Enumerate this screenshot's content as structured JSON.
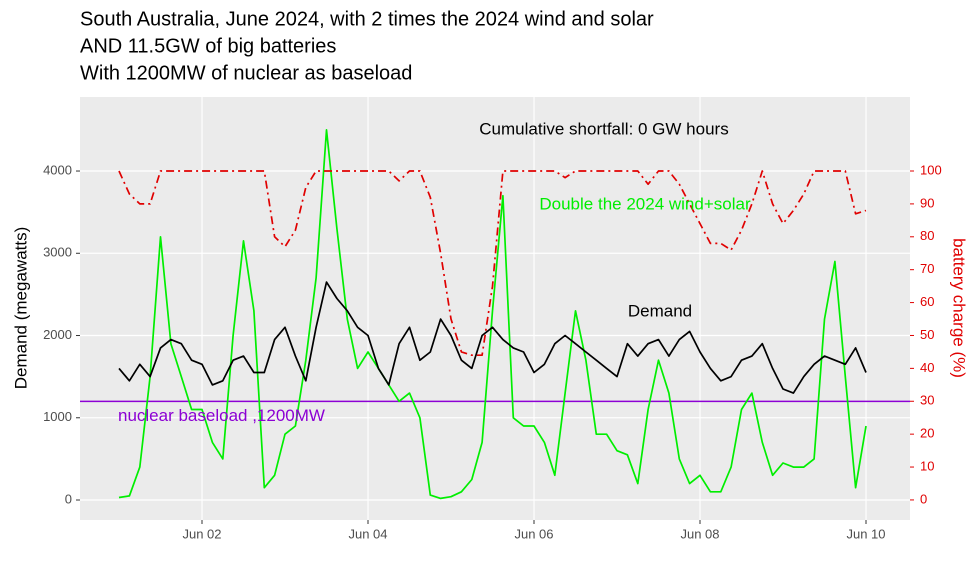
{
  "chart_data": {
    "type": "line",
    "title": [
      "South Australia, June 2024, with 2 times the 2024 wind and solar",
      "AND 11.5GW of big batteries",
      "With 1200MW of nuclear as baseload"
    ],
    "y_label": "Demand (megawatts)",
    "y2_label": "battery charge (%)",
    "annotations": [
      "Cumulative shortfall: 0 GW hours",
      "Double the 2024 wind+solar",
      "Demand"
    ],
    "hline": {
      "value": 1200,
      "label": "nuclear baseload ,1200MW",
      "color": "#8c00d4"
    },
    "x": [
      1,
      1.125,
      1.25,
      1.375,
      1.5,
      1.625,
      1.75,
      1.875,
      2,
      2.125,
      2.25,
      2.375,
      2.5,
      2.625,
      2.75,
      2.875,
      3,
      3.125,
      3.25,
      3.375,
      3.5,
      3.625,
      3.75,
      3.875,
      4,
      4.125,
      4.25,
      4.375,
      4.5,
      4.625,
      4.75,
      4.875,
      5,
      5.125,
      5.25,
      5.375,
      5.5,
      5.625,
      5.75,
      5.875,
      6,
      6.125,
      6.25,
      6.375,
      6.5,
      6.625,
      6.75,
      6.875,
      7,
      7.125,
      7.25,
      7.375,
      7.5,
      7.625,
      7.75,
      7.875,
      8,
      8.125,
      8.25,
      8.375,
      8.5,
      8.625,
      8.75,
      8.875,
      9,
      9.125,
      9.25,
      9.375,
      9.5,
      9.625,
      9.75,
      9.875,
      10
    ],
    "series": [
      {
        "color": "#00ee00",
        "values": [
          30,
          50,
          400,
          1500,
          3200,
          1900,
          1500,
          1100,
          1100,
          700,
          500,
          2000,
          3150,
          2300,
          150,
          300,
          800,
          900,
          1700,
          2700,
          4500,
          3300,
          2200,
          1600,
          1800,
          1600,
          1400,
          1200,
          1300,
          1000,
          60,
          20,
          40,
          100,
          250,
          700,
          2300,
          3700,
          1000,
          900,
          900,
          700,
          300,
          1300,
          2300,
          1700,
          800,
          800,
          600,
          550,
          200,
          1100,
          1700,
          1300,
          500,
          200,
          300,
          100,
          100,
          400,
          1100,
          1300,
          700,
          300,
          450,
          400,
          400,
          500,
          2200,
          2900,
          1500,
          150,
          900
        ]
      },
      {
        "color": "#000000",
        "values": [
          1600,
          1450,
          1650,
          1500,
          1850,
          1950,
          1900,
          1700,
          1650,
          1400,
          1450,
          1700,
          1750,
          1550,
          1550,
          1950,
          2100,
          1750,
          1450,
          2100,
          2650,
          2450,
          2300,
          2100,
          2000,
          1600,
          1400,
          1900,
          2100,
          1700,
          1800,
          2200,
          2000,
          1700,
          1600,
          2000,
          2100,
          1950,
          1850,
          1800,
          1550,
          1650,
          1900,
          2000,
          1900,
          1800,
          1700,
          1600,
          1500,
          1900,
          1750,
          1900,
          1950,
          1750,
          1950,
          2050,
          1800,
          1600,
          1450,
          1500,
          1700,
          1750,
          1900,
          1600,
          1350,
          1300,
          1500,
          1650,
          1750,
          1700,
          1650,
          1850,
          1550
        ]
      },
      {
        "color": "#e00000",
        "axis": "y2",
        "dash": "dashdot",
        "values": [
          100,
          93,
          90,
          90,
          100,
          100,
          100,
          100,
          100,
          100,
          100,
          100,
          100,
          100,
          100,
          80,
          77,
          82,
          95,
          100,
          100,
          100,
          100,
          100,
          100,
          100,
          100,
          97,
          100,
          100,
          92,
          75,
          55,
          45,
          44,
          44,
          65,
          100,
          100,
          100,
          100,
          100,
          100,
          98,
          100,
          100,
          100,
          100,
          100,
          100,
          100,
          96,
          100,
          100,
          96,
          90,
          84,
          78,
          78,
          76,
          82,
          90,
          100,
          90,
          84,
          88,
          93,
          100,
          100,
          100,
          100,
          87,
          88
        ]
      }
    ],
    "xlim": [
      0.53,
      10.53
    ],
    "xticks": [
      {
        "value": 2,
        "label": "Jun 02"
      },
      {
        "value": 4,
        "label": "Jun 04"
      },
      {
        "value": 6,
        "label": "Jun 06"
      },
      {
        "value": 8,
        "label": "Jun 08"
      },
      {
        "value": 10,
        "label": "Jun 10"
      }
    ],
    "ylim": [
      -243,
      4900
    ],
    "yticks": [
      0,
      1000,
      2000,
      3000,
      4000
    ],
    "y2lim": [
      -6.1,
      122.5
    ],
    "y2ticks": [
      0,
      10,
      20,
      30,
      40,
      50,
      60,
      70,
      80,
      90,
      100
    ],
    "grid": true
  }
}
